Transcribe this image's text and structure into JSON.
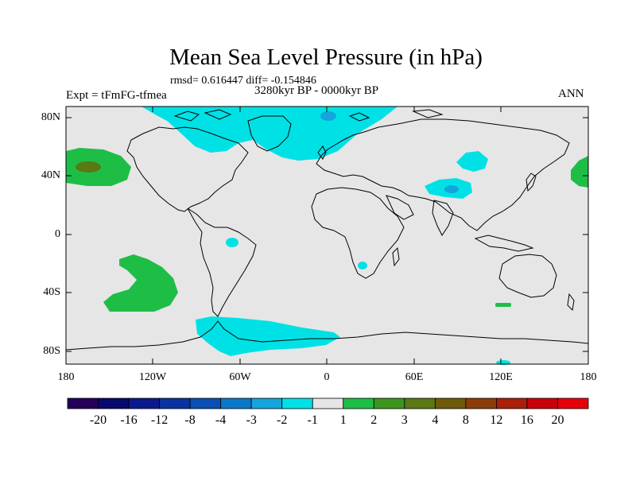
{
  "title": "Mean Sea Level Pressure (in hPa)",
  "stats": "rmsd= 0.616447 diff= -0.154846",
  "period": "3280kyr BP - 0000kyr BP",
  "experiment": "Expt = tFmFG-tfmea",
  "season": "ANN",
  "lat_labels": [
    "80N",
    "40N",
    "0",
    "40S",
    "80S"
  ],
  "lon_labels": [
    "180",
    "120W",
    "60W",
    "0",
    "60E",
    "120E",
    "180"
  ],
  "colorbar": {
    "labels": [
      "-20",
      "-16",
      "-12",
      "-8",
      "-4",
      "-3",
      "-2",
      "-1",
      "1",
      "2",
      "3",
      "4",
      "8",
      "12",
      "16",
      "20"
    ],
    "colors": [
      "#24005a",
      "#08086e",
      "#0a1a8c",
      "#0a32a0",
      "#0a4fb4",
      "#0a78c8",
      "#14a5dc",
      "#00e1e6",
      "#e6e6e6",
      "#1ebe46",
      "#3c961e",
      "#5a7814",
      "#6e5a0a",
      "#8c3c0a",
      "#aa1e0a",
      "#c8000a",
      "#e6000a"
    ]
  },
  "colors": {
    "land_background": "#e6e6e6",
    "negative_anomaly": "#00e1e6",
    "strong_negative": "#14a5dc",
    "positive_anomaly": "#1ebe46",
    "strong_positive": "#5a7814"
  }
}
